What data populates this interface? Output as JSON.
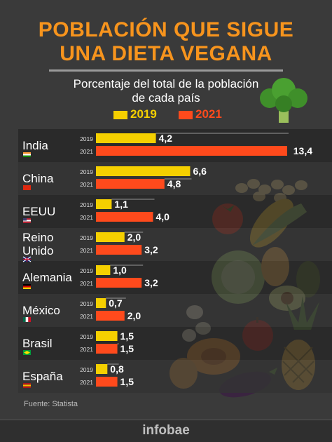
{
  "header": {
    "title_line1": "POBLACIÓN QUE SIGUE",
    "title_line2": "UNA DIETA VEGANA",
    "subtitle_line1": "Porcentaje del total de la población",
    "subtitle_line2": "de cada país"
  },
  "legend": [
    {
      "label": "2019",
      "color": "#f5d000"
    },
    {
      "label": "2021",
      "color": "#ff4a1c"
    }
  ],
  "chart_data": {
    "type": "bar",
    "orientation": "horizontal",
    "categories": [
      "India",
      "China",
      "EEUU",
      "Reino Unido",
      "Alemania",
      "México",
      "Brasil",
      "España"
    ],
    "category_lines": [
      [
        "India"
      ],
      [
        "China"
      ],
      [
        "EEUU"
      ],
      [
        "Reino",
        "Unido"
      ],
      [
        "Alemania"
      ],
      [
        "México"
      ],
      [
        "Brasil"
      ],
      [
        "España"
      ]
    ],
    "flag_icons": [
      "india-flag-icon",
      "china-flag-icon",
      "usa-flag-icon",
      "uk-flag-icon",
      "germany-flag-icon",
      "mexico-flag-icon",
      "brazil-flag-icon",
      "spain-flag-icon"
    ],
    "series": [
      {
        "name": "2019",
        "color": "#f5d000",
        "values": [
          4.2,
          6.6,
          1.1,
          2.0,
          1.0,
          0.7,
          1.5,
          0.8
        ],
        "labels": [
          "4,2",
          "6,6",
          "1,1",
          "2,0",
          "1,0",
          "0,7",
          "1,5",
          "0,8"
        ]
      },
      {
        "name": "2021",
        "color": "#ff4a1c",
        "values": [
          13.4,
          4.8,
          4.0,
          3.2,
          3.2,
          2.0,
          1.5,
          1.5
        ],
        "labels": [
          "13,4",
          "4,8",
          "4,0",
          "3,2",
          "3,2",
          "2,0",
          "1,5",
          "1,5"
        ]
      }
    ],
    "xlim": [
      0,
      13.4
    ],
    "legend_position": "top"
  },
  "source": "Fuente: Statista",
  "brand": "infobae",
  "colors": {
    "background": "#3a3a3a",
    "title": "#f7941d",
    "band_dark": "#2b2b2b"
  },
  "decoration": [
    "broccoli-image",
    "soybeans-image",
    "tomato-image",
    "corn-image",
    "lettuce-image",
    "avocado-image",
    "apple-image",
    "papaya-image",
    "pineapple-image",
    "eggplant-image"
  ]
}
